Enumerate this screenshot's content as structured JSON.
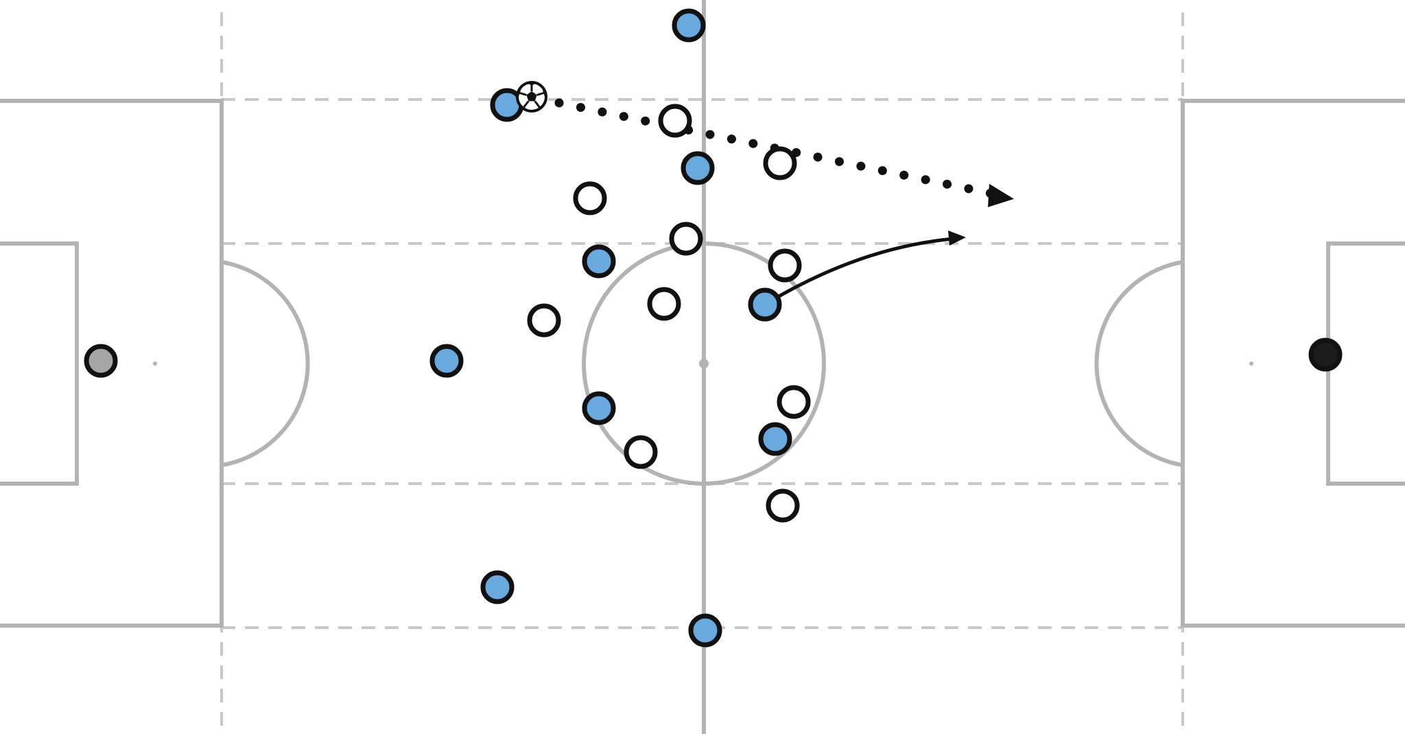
{
  "diagram": {
    "type": "football tactics board",
    "colors": {
      "pitch_lines": "#b3b3b3",
      "zone_lines": "#c8c8c8",
      "team_blue": "#6aa9de",
      "team_white": "#ffffff",
      "goalkeeper_left": "#a6a6a6",
      "goalkeeper_right": "#1c1c1c",
      "outline": "#111111"
    },
    "icons": {
      "ball": "soccer-ball-icon",
      "pass": "dotted-arrow",
      "run": "curved-arrow"
    }
  }
}
